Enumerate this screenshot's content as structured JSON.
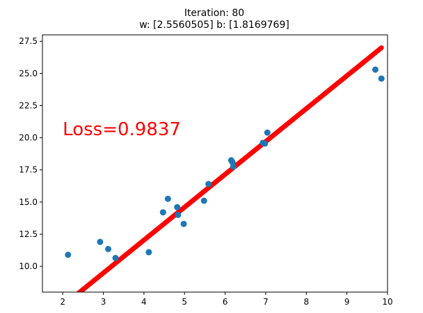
{
  "chart_data": {
    "type": "scatter",
    "title_line1": "Iteration: 80",
    "title_line2": "w: [2.5560505] b: [1.8169769]",
    "annotation": "Loss=0.9837",
    "annotation_pos": [
      2.0,
      20.2
    ],
    "annotation_color": "#ff0000",
    "xlim": [
      1.5,
      10.0
    ],
    "ylim": [
      8.0,
      28.0
    ],
    "x_ticks": [
      2,
      3,
      4,
      5,
      6,
      7,
      8,
      9,
      10
    ],
    "x_tick_labels": [
      "2",
      "3",
      "4",
      "5",
      "6",
      "7",
      "8",
      "9",
      "10"
    ],
    "y_ticks": [
      10.0,
      12.5,
      15.0,
      17.5,
      20.0,
      22.5,
      25.0,
      27.5
    ],
    "y_tick_labels": [
      "10.0",
      "12.5",
      "15.0",
      "17.5",
      "20.0",
      "22.5",
      "25.0",
      "27.5"
    ],
    "grid": false,
    "series": [
      {
        "kind": "scatter",
        "color": "#1f77b4",
        "points": [
          [
            2.13,
            10.9
          ],
          [
            2.92,
            11.9
          ],
          [
            3.12,
            11.35
          ],
          [
            3.3,
            10.65
          ],
          [
            4.12,
            11.1
          ],
          [
            4.47,
            14.2
          ],
          [
            4.59,
            15.25
          ],
          [
            4.82,
            14.6
          ],
          [
            4.84,
            14.0
          ],
          [
            4.98,
            13.3
          ],
          [
            5.48,
            15.1
          ],
          [
            5.59,
            16.4
          ],
          [
            6.15,
            18.25
          ],
          [
            6.18,
            18.1
          ],
          [
            6.2,
            17.75
          ],
          [
            6.93,
            19.6
          ],
          [
            6.98,
            19.55
          ],
          [
            7.04,
            20.4
          ],
          [
            9.7,
            25.3
          ],
          [
            9.85,
            24.6
          ]
        ]
      },
      {
        "kind": "line",
        "color": "#ff0000",
        "x_range": [
          2.37,
          9.85
        ],
        "slope": 2.5560505,
        "intercept": 1.8169769
      }
    ]
  }
}
